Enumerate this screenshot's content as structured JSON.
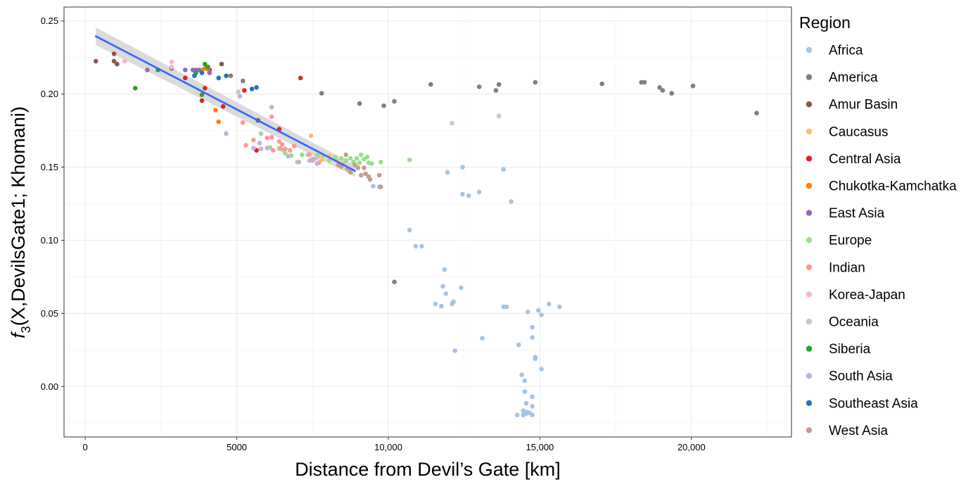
{
  "chart_data": {
    "type": "scatter",
    "xlabel": "Distance from Devil’s Gate [km]",
    "ylabel_prefix": "f",
    "ylabel_sub": "3",
    "ylabel_rest": "(X,DevilsGate1; Khomani)",
    "xlim": [
      -700,
      23300
    ],
    "ylim": [
      -0.0345,
      0.2595
    ],
    "x_ticks": [
      0,
      5000,
      10000,
      15000,
      20000
    ],
    "x_tick_labels": [
      "0",
      "5000",
      "10,000",
      "15,000",
      "20,000"
    ],
    "y_ticks": [
      0.0,
      0.05,
      0.1,
      0.15,
      0.2,
      0.25
    ],
    "y_tick_labels": [
      "0.00",
      "0.05",
      "0.10",
      "0.15",
      "0.20",
      "0.25"
    ],
    "grid": true,
    "legend_title": "Region",
    "legend_position": "right",
    "regression": {
      "method": "linear",
      "color": "#3366FF",
      "band_color": "#bdbdbd",
      "x": [
        350,
        8900
      ],
      "y": [
        0.2395,
        0.1475
      ],
      "se_lo": [
        0.2335,
        0.1435
      ],
      "se_hi": [
        0.2455,
        0.1515
      ]
    },
    "series": [
      {
        "name": "Africa",
        "color": "#A6C4E4",
        "points": [
          [
            10700,
            0.107
          ],
          [
            10900,
            0.096
          ],
          [
            11100,
            0.096
          ],
          [
            11800,
            0.0685
          ],
          [
            11850,
            0.08
          ],
          [
            11900,
            0.0635
          ],
          [
            11550,
            0.0565
          ],
          [
            11750,
            0.055
          ],
          [
            12100,
            0.0565
          ],
          [
            12150,
            0.058
          ],
          [
            12400,
            0.0675
          ],
          [
            12200,
            0.0245
          ],
          [
            11950,
            0.1465
          ],
          [
            12450,
            0.15
          ],
          [
            12450,
            0.1315
          ],
          [
            12650,
            0.1305
          ],
          [
            13000,
            0.133
          ],
          [
            13800,
            0.1485
          ],
          [
            14050,
            0.1265
          ],
          [
            13100,
            0.033
          ],
          [
            13800,
            0.0545
          ],
          [
            13900,
            0.0545
          ],
          [
            14300,
            0.0285
          ],
          [
            14600,
            0.051
          ],
          [
            14750,
            0.0405
          ],
          [
            14750,
            0.0335
          ],
          [
            14950,
            0.052
          ],
          [
            15050,
            0.049
          ],
          [
            15300,
            0.0565
          ],
          [
            15650,
            0.0545
          ],
          [
            14850,
            0.02
          ],
          [
            14850,
            0.019
          ],
          [
            15050,
            0.012
          ],
          [
            14400,
            0.008
          ],
          [
            14500,
            0.004
          ],
          [
            14500,
            -0.0035
          ],
          [
            14750,
            -0.007
          ],
          [
            14550,
            -0.0115
          ],
          [
            14750,
            -0.0135
          ],
          [
            14450,
            -0.0165
          ],
          [
            14550,
            -0.0175
          ],
          [
            14650,
            -0.018
          ],
          [
            14450,
            -0.0195
          ],
          [
            14550,
            -0.0185
          ],
          [
            14750,
            -0.0195
          ],
          [
            14250,
            -0.0195
          ],
          [
            9500,
            0.137
          ],
          [
            9700,
            0.1365
          ]
        ]
      },
      {
        "name": "America",
        "color": "#7F7F7F",
        "points": [
          [
            7800,
            0.2005
          ],
          [
            9050,
            0.1935
          ],
          [
            9850,
            0.192
          ],
          [
            10200,
            0.195
          ],
          [
            11400,
            0.2065
          ],
          [
            13000,
            0.205
          ],
          [
            13550,
            0.2025
          ],
          [
            13650,
            0.2065
          ],
          [
            14850,
            0.208
          ],
          [
            17050,
            0.207
          ],
          [
            18350,
            0.208
          ],
          [
            18450,
            0.208
          ],
          [
            18950,
            0.2045
          ],
          [
            19050,
            0.2025
          ],
          [
            19350,
            0.2005
          ],
          [
            20050,
            0.2055
          ],
          [
            22150,
            0.187
          ],
          [
            10200,
            0.0715
          ],
          [
            5200,
            0.209
          ],
          [
            4800,
            0.2125
          ]
        ]
      },
      {
        "name": "Amur Basin",
        "color": "#8C564B",
        "points": [
          [
            350,
            0.2225
          ],
          [
            950,
            0.2275
          ],
          [
            950,
            0.2225
          ],
          [
            1050,
            0.2205
          ],
          [
            4500,
            0.2205
          ],
          [
            5700,
            0.182
          ]
        ]
      },
      {
        "name": "Caucasus",
        "color": "#FFBB78",
        "points": [
          [
            7450,
            0.1715
          ],
          [
            8300,
            0.1545
          ],
          [
            7700,
            0.1585
          ],
          [
            7800,
            0.155
          ],
          [
            8050,
            0.1575
          ],
          [
            8500,
            0.1525
          ]
        ]
      },
      {
        "name": "Central Asia",
        "color": "#D62728",
        "points": [
          [
            7100,
            0.211
          ],
          [
            5250,
            0.2025
          ],
          [
            3850,
            0.1955
          ],
          [
            3950,
            0.204
          ],
          [
            4550,
            0.1915
          ],
          [
            6400,
            0.176
          ],
          [
            5650,
            0.1615
          ],
          [
            4100,
            0.2165
          ],
          [
            3300,
            0.211
          ]
        ]
      },
      {
        "name": "Chukotka-Kamchatka",
        "color": "#FF7F0E",
        "points": [
          [
            4050,
            0.217
          ],
          [
            3950,
            0.2175
          ],
          [
            3850,
            0.2165
          ],
          [
            4300,
            0.189
          ],
          [
            4400,
            0.181
          ]
        ]
      },
      {
        "name": "East Asia",
        "color": "#9467BD",
        "points": [
          [
            2850,
            0.2175
          ],
          [
            3300,
            0.2165
          ],
          [
            3550,
            0.2165
          ],
          [
            3650,
            0.2165
          ],
          [
            3750,
            0.2165
          ],
          [
            4100,
            0.2145
          ],
          [
            2050,
            0.2165
          ]
        ]
      },
      {
        "name": "Europe",
        "color": "#98DF8A",
        "points": [
          [
            5800,
            0.173
          ],
          [
            6100,
            0.1635
          ],
          [
            6400,
            0.163
          ],
          [
            6550,
            0.1615
          ],
          [
            6600,
            0.1595
          ],
          [
            6800,
            0.158
          ],
          [
            7000,
            0.1535
          ],
          [
            7150,
            0.1585
          ],
          [
            7350,
            0.1585
          ],
          [
            7650,
            0.158
          ],
          [
            7850,
            0.158
          ],
          [
            8050,
            0.1545
          ],
          [
            8250,
            0.157
          ],
          [
            8450,
            0.156
          ],
          [
            8600,
            0.1545
          ],
          [
            8750,
            0.156
          ],
          [
            8950,
            0.156
          ],
          [
            9100,
            0.1585
          ],
          [
            9200,
            0.1555
          ],
          [
            9300,
            0.157
          ],
          [
            9350,
            0.153
          ],
          [
            9450,
            0.1525
          ],
          [
            9750,
            0.1535
          ],
          [
            10700,
            0.155
          ],
          [
            8850,
            0.1535
          ],
          [
            9050,
            0.153
          ]
        ]
      },
      {
        "name": "Indian",
        "color": "#FF9896",
        "points": [
          [
            5200,
            0.1805
          ],
          [
            5300,
            0.165
          ],
          [
            5550,
            0.1685
          ],
          [
            6000,
            0.17
          ],
          [
            6150,
            0.1705
          ],
          [
            6150,
            0.1845
          ],
          [
            6200,
            0.1615
          ],
          [
            6400,
            0.1675
          ],
          [
            6450,
            0.1625
          ],
          [
            6500,
            0.1655
          ],
          [
            6600,
            0.1625
          ],
          [
            6750,
            0.1615
          ],
          [
            6900,
            0.1645
          ],
          [
            7400,
            0.1585
          ],
          [
            7550,
            0.1555
          ],
          [
            7700,
            0.153
          ]
        ]
      },
      {
        "name": "Korea-Japan",
        "color": "#F7B6D2",
        "points": [
          [
            1300,
            0.2225
          ],
          [
            2850,
            0.222
          ],
          [
            2850,
            0.2185
          ]
        ]
      },
      {
        "name": "Oceania",
        "color": "#C7C7C7",
        "points": [
          [
            12100,
            0.18
          ],
          [
            13650,
            0.185
          ],
          [
            5050,
            0.2015
          ],
          [
            7650,
            0.1565
          ]
        ]
      },
      {
        "name": "Siberia",
        "color": "#2CA02C",
        "points": [
          [
            1650,
            0.204
          ],
          [
            2400,
            0.2165
          ],
          [
            3950,
            0.2205
          ],
          [
            3850,
            0.1995
          ],
          [
            4050,
            0.2185
          ],
          [
            3650,
            0.2145
          ]
        ]
      },
      {
        "name": "South Asia",
        "color": "#C5B0D5",
        "points": [
          [
            4650,
            0.173
          ],
          [
            5100,
            0.1985
          ],
          [
            5550,
            0.163
          ],
          [
            5750,
            0.1665
          ],
          [
            5800,
            0.1625
          ],
          [
            6000,
            0.163
          ],
          [
            6150,
            0.191
          ],
          [
            6700,
            0.1575
          ],
          [
            7050,
            0.1535
          ],
          [
            7400,
            0.1545
          ],
          [
            7500,
            0.1545
          ],
          [
            7500,
            0.1555
          ],
          [
            7650,
            0.1525
          ]
        ]
      },
      {
        "name": "Southeast Asia",
        "color": "#1F77B4",
        "points": [
          [
            3600,
            0.2125
          ],
          [
            3850,
            0.2145
          ],
          [
            4400,
            0.211
          ],
          [
            4650,
            0.2125
          ],
          [
            5500,
            0.2035
          ],
          [
            5650,
            0.2045
          ]
        ]
      },
      {
        "name": "West Asia",
        "color": "#C49C94",
        "points": [
          [
            8350,
            0.1515
          ],
          [
            8450,
            0.1505
          ],
          [
            8600,
            0.1585
          ],
          [
            8650,
            0.149
          ],
          [
            8750,
            0.1465
          ],
          [
            8900,
            0.1515
          ],
          [
            9000,
            0.1495
          ],
          [
            9200,
            0.1495
          ],
          [
            9250,
            0.1455
          ],
          [
            9350,
            0.1435
          ],
          [
            9400,
            0.1415
          ],
          [
            9700,
            0.1445
          ],
          [
            9750,
            0.1365
          ],
          [
            9100,
            0.1445
          ],
          [
            8700,
            0.1485
          ]
        ]
      }
    ]
  }
}
